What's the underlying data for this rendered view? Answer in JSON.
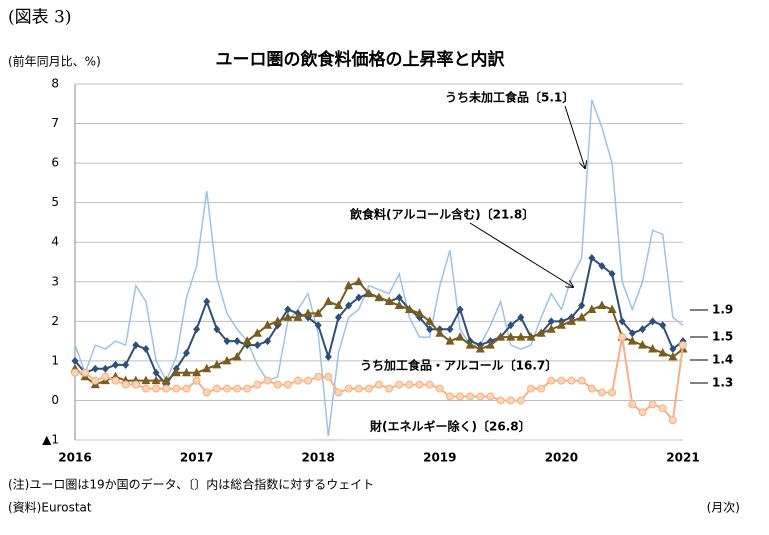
{
  "figure_label": "(図表 3)",
  "chart_data": {
    "type": "line",
    "title": "ユーロ圏の飲食料価格の上昇率と内訳",
    "y_label": "(前年同月比、%)",
    "x_label": "(月次)",
    "categories": [
      "2016",
      null,
      null,
      null,
      null,
      null,
      null,
      null,
      null,
      null,
      null,
      null,
      "2017",
      null,
      null,
      null,
      null,
      null,
      null,
      null,
      null,
      null,
      null,
      null,
      "2018",
      null,
      null,
      null,
      null,
      null,
      null,
      null,
      null,
      null,
      null,
      null,
      "2019",
      null,
      null,
      null,
      null,
      null,
      null,
      null,
      null,
      null,
      null,
      null,
      "2020",
      null,
      null,
      null,
      null,
      null,
      null,
      null,
      null,
      null,
      null,
      null,
      "2021"
    ],
    "ylim": [
      -1,
      8
    ],
    "yticks": [
      {
        "value": -1,
        "label": "▲1"
      },
      0,
      1,
      2,
      3,
      4,
      5,
      6,
      7,
      8
    ],
    "grid": true,
    "series": [
      {
        "name": "うち未加工食品〔5.1〕",
        "color": "#9dc3e6",
        "marker": "none",
        "values": [
          1.4,
          0.7,
          1.4,
          1.3,
          1.5,
          1.4,
          2.9,
          2.5,
          1.0,
          0.5,
          1.1,
          2.6,
          3.4,
          5.3,
          3.1,
          2.2,
          1.8,
          1.5,
          0.9,
          0.5,
          0.6,
          2.0,
          2.3,
          2.7,
          1.7,
          -0.9,
          1.2,
          2.1,
          2.3,
          2.9,
          2.8,
          2.7,
          3.2,
          2.1,
          1.6,
          1.6,
          2.9,
          3.8,
          1.8,
          1.4,
          1.4,
          1.9,
          2.5,
          1.4,
          1.3,
          1.4,
          2.1,
          2.7,
          2.3,
          3.1,
          3.6,
          7.6,
          6.9,
          6.0,
          3.0,
          2.3,
          3.0,
          4.3,
          4.2,
          2.1,
          1.9
        ]
      },
      {
        "name": "飲食料(アルコール含む)〔21.8〕",
        "color": "#2e4f7a",
        "marker": "diamond",
        "values": [
          1.0,
          0.7,
          0.8,
          0.8,
          0.9,
          0.9,
          1.4,
          1.3,
          0.7,
          0.4,
          0.8,
          1.2,
          1.8,
          2.5,
          1.8,
          1.5,
          1.5,
          1.4,
          1.4,
          1.5,
          1.9,
          2.3,
          2.2,
          2.1,
          1.9,
          1.1,
          2.1,
          2.4,
          2.6,
          2.7,
          2.6,
          2.5,
          2.6,
          2.3,
          2.1,
          1.8,
          1.8,
          1.8,
          2.3,
          1.5,
          1.4,
          1.5,
          1.6,
          1.9,
          2.1,
          1.6,
          1.7,
          2.0,
          2.0,
          2.1,
          2.4,
          3.6,
          3.4,
          3.2,
          2.0,
          1.7,
          1.8,
          2.0,
          1.9,
          1.3,
          1.5
        ]
      },
      {
        "name": "うち加工食品・アルコール〔16.7〕",
        "color": "#7a5c1e",
        "marker": "triangle",
        "values": [
          0.8,
          0.6,
          0.4,
          0.5,
          0.6,
          0.5,
          0.5,
          0.5,
          0.5,
          0.5,
          0.7,
          0.7,
          0.7,
          0.8,
          0.9,
          1.0,
          1.1,
          1.5,
          1.7,
          1.9,
          2.0,
          2.1,
          2.1,
          2.2,
          2.2,
          2.5,
          2.4,
          2.9,
          3.0,
          2.7,
          2.6,
          2.5,
          2.4,
          2.3,
          2.2,
          2.0,
          1.7,
          1.5,
          1.6,
          1.4,
          1.3,
          1.4,
          1.6,
          1.6,
          1.6,
          1.6,
          1.7,
          1.8,
          1.9,
          2.0,
          2.1,
          2.3,
          2.4,
          2.3,
          1.6,
          1.5,
          1.4,
          1.3,
          1.2,
          1.1,
          1.3
        ]
      },
      {
        "name": "財(エネルギー除く)〔26.8〕",
        "color": "#f4b183",
        "marker": "circle",
        "values": [
          0.7,
          0.7,
          0.5,
          0.6,
          0.5,
          0.4,
          0.4,
          0.3,
          0.3,
          0.3,
          0.3,
          0.3,
          0.5,
          0.2,
          0.3,
          0.3,
          0.3,
          0.3,
          0.4,
          0.5,
          0.4,
          0.4,
          0.5,
          0.5,
          0.6,
          0.6,
          0.2,
          0.3,
          0.3,
          0.3,
          0.4,
          0.3,
          0.4,
          0.4,
          0.4,
          0.4,
          0.3,
          0.1,
          0.1,
          0.1,
          0.1,
          0.1,
          0.0,
          0.0,
          0.0,
          0.3,
          0.3,
          0.5,
          0.5,
          0.5,
          0.5,
          0.3,
          0.2,
          0.2,
          1.6,
          -0.1,
          -0.3,
          -0.1,
          -0.2,
          -0.5,
          1.4
        ]
      }
    ],
    "annotations": [
      "1.9",
      "1.5",
      "1.4",
      "1.3"
    ]
  },
  "notes": [
    "(注)ユーロ圏は19か国のデータ、〔〕内は総合指数に対するウェイト",
    "(資料)Eurostat"
  ]
}
